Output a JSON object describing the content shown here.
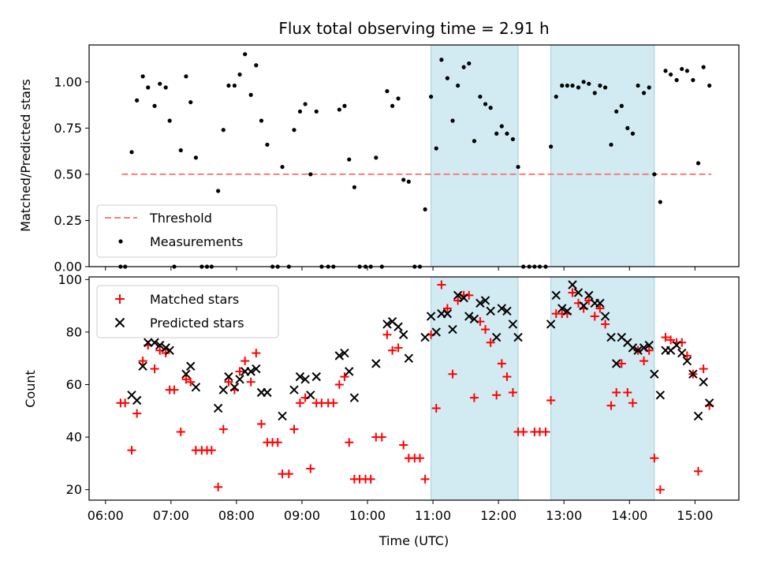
{
  "chart_data": {
    "type": "scatter",
    "title": "Flux total observing time = 2.91 h",
    "xlabel": "Time (UTC)",
    "x_ticks": [
      "06:00",
      "07:00",
      "08:00",
      "09:00",
      "10:00",
      "11:00",
      "12:00",
      "13:00",
      "14:00",
      "15:00"
    ],
    "xlim_hours": [
      5.75,
      15.67
    ],
    "shaded_intervals_hours": [
      [
        10.97,
        12.3
      ],
      [
        12.8,
        14.38
      ]
    ],
    "colors": {
      "threshold": "#f08080",
      "measurements": "#000000",
      "matched": "#ff0000",
      "predicted": "#000000",
      "shade": "#add8e6"
    },
    "top": {
      "ylabel": "Matched/Predicted stars",
      "ylim": [
        0,
        1.2
      ],
      "y_ticks": [
        "0.00",
        "0.25",
        "0.50",
        "0.75",
        "1.00"
      ],
      "threshold": {
        "name": "Threshold",
        "value": 0.5,
        "x_range": [
          6.25,
          15.25
        ]
      },
      "measurements_name": "Measurements",
      "measurements": [
        [
          6.23,
          0.0
        ],
        [
          6.3,
          0.0
        ],
        [
          6.4,
          0.62
        ],
        [
          6.48,
          0.9
        ],
        [
          6.57,
          1.03
        ],
        [
          6.65,
          0.97
        ],
        [
          6.75,
          0.87
        ],
        [
          6.83,
          0.99
        ],
        [
          6.92,
          0.97
        ],
        [
          6.98,
          0.79
        ],
        [
          7.05,
          0.0
        ],
        [
          7.15,
          0.63
        ],
        [
          7.23,
          1.03
        ],
        [
          7.3,
          0.89
        ],
        [
          7.38,
          0.59
        ],
        [
          7.47,
          0.0
        ],
        [
          7.55,
          0.0
        ],
        [
          7.62,
          0.0
        ],
        [
          7.72,
          0.41
        ],
        [
          7.8,
          0.74
        ],
        [
          7.88,
          0.98
        ],
        [
          7.97,
          0.98
        ],
        [
          8.05,
          1.04
        ],
        [
          8.13,
          1.15
        ],
        [
          8.22,
          0.93
        ],
        [
          8.3,
          1.09
        ],
        [
          8.38,
          0.79
        ],
        [
          8.47,
          0.66
        ],
        [
          8.55,
          0.0
        ],
        [
          8.63,
          0.0
        ],
        [
          8.7,
          0.54
        ],
        [
          8.8,
          0.0
        ],
        [
          8.88,
          0.74
        ],
        [
          8.97,
          0.84
        ],
        [
          9.05,
          0.88
        ],
        [
          9.13,
          0.5
        ],
        [
          9.22,
          0.84
        ],
        [
          9.3,
          0.0
        ],
        [
          9.4,
          0.0
        ],
        [
          9.48,
          0.0
        ],
        [
          9.57,
          0.85
        ],
        [
          9.65,
          0.87
        ],
        [
          9.72,
          0.58
        ],
        [
          9.8,
          0.43
        ],
        [
          9.88,
          0.0
        ],
        [
          9.97,
          0.0
        ],
        [
          10.05,
          0.0
        ],
        [
          10.13,
          0.59
        ],
        [
          10.22,
          0.0
        ],
        [
          10.3,
          0.95
        ],
        [
          10.38,
          0.87
        ],
        [
          10.47,
          0.91
        ],
        [
          10.55,
          0.47
        ],
        [
          10.63,
          0.46
        ],
        [
          10.72,
          0.0
        ],
        [
          10.8,
          0.0
        ],
        [
          10.88,
          0.31
        ],
        [
          10.97,
          0.92
        ],
        [
          11.05,
          0.64
        ],
        [
          11.13,
          1.12
        ],
        [
          11.22,
          1.02
        ],
        [
          11.3,
          0.79
        ],
        [
          11.38,
          0.98
        ],
        [
          11.47,
          1.08
        ],
        [
          11.55,
          1.1
        ],
        [
          11.63,
          0.68
        ],
        [
          11.72,
          0.92
        ],
        [
          11.8,
          0.88
        ],
        [
          11.88,
          0.86
        ],
        [
          11.97,
          0.72
        ],
        [
          12.05,
          0.76
        ],
        [
          12.13,
          0.72
        ],
        [
          12.22,
          0.69
        ],
        [
          12.3,
          0.54
        ],
        [
          12.38,
          0.0
        ],
        [
          12.47,
          0.0
        ],
        [
          12.55,
          0.0
        ],
        [
          12.63,
          0.0
        ],
        [
          12.72,
          0.0
        ],
        [
          12.8,
          0.65
        ],
        [
          12.88,
          0.92
        ],
        [
          12.97,
          0.98
        ],
        [
          13.05,
          0.98
        ],
        [
          13.13,
          0.98
        ],
        [
          13.22,
          0.97
        ],
        [
          13.3,
          1.0
        ],
        [
          13.38,
          0.99
        ],
        [
          13.47,
          0.94
        ],
        [
          13.55,
          0.98
        ],
        [
          13.63,
          0.97
        ],
        [
          13.72,
          0.66
        ],
        [
          13.8,
          0.84
        ],
        [
          13.88,
          0.87
        ],
        [
          13.97,
          0.75
        ],
        [
          14.05,
          0.72
        ],
        [
          14.13,
          0.98
        ],
        [
          14.22,
          0.94
        ],
        [
          14.3,
          0.97
        ],
        [
          14.38,
          0.5
        ],
        [
          14.47,
          0.35
        ],
        [
          14.55,
          1.06
        ],
        [
          14.63,
          1.04
        ],
        [
          14.72,
          1.01
        ],
        [
          14.8,
          1.07
        ],
        [
          14.88,
          1.06
        ],
        [
          14.97,
          1.01
        ],
        [
          15.05,
          0.56
        ],
        [
          15.13,
          1.08
        ],
        [
          15.22,
          0.98
        ]
      ]
    },
    "bottom": {
      "ylabel": "Count",
      "ylim": [
        16,
        101
      ],
      "y_ticks": [
        "20",
        "40",
        "60",
        "80",
        "100"
      ],
      "matched_name": "Matched stars",
      "predicted_name": "Predicted stars",
      "matched": [
        [
          6.23,
          53
        ],
        [
          6.3,
          53
        ],
        [
          6.4,
          35
        ],
        [
          6.48,
          49
        ],
        [
          6.57,
          69
        ],
        [
          6.65,
          75
        ],
        [
          6.75,
          66
        ],
        [
          6.83,
          73
        ],
        [
          6.92,
          72
        ],
        [
          6.98,
          58
        ],
        [
          7.05,
          58
        ],
        [
          7.15,
          42
        ],
        [
          7.23,
          62
        ],
        [
          7.3,
          61
        ],
        [
          7.38,
          35
        ],
        [
          7.47,
          35
        ],
        [
          7.55,
          35
        ],
        [
          7.62,
          35
        ],
        [
          7.72,
          21
        ],
        [
          7.8,
          43
        ],
        [
          7.88,
          61
        ],
        [
          7.97,
          58
        ],
        [
          8.05,
          65
        ],
        [
          8.13,
          69
        ],
        [
          8.22,
          61
        ],
        [
          8.3,
          72
        ],
        [
          8.38,
          45
        ],
        [
          8.47,
          38
        ],
        [
          8.55,
          38
        ],
        [
          8.63,
          38
        ],
        [
          8.7,
          26
        ],
        [
          8.8,
          26
        ],
        [
          8.88,
          43
        ],
        [
          8.97,
          53
        ],
        [
          9.05,
          55
        ],
        [
          9.13,
          28
        ],
        [
          9.22,
          53
        ],
        [
          9.3,
          53
        ],
        [
          9.4,
          53
        ],
        [
          9.48,
          53
        ],
        [
          9.57,
          60
        ],
        [
          9.65,
          63
        ],
        [
          9.72,
          38
        ],
        [
          9.8,
          24
        ],
        [
          9.88,
          24
        ],
        [
          9.97,
          24
        ],
        [
          10.05,
          24
        ],
        [
          10.13,
          40
        ],
        [
          10.22,
          40
        ],
        [
          10.3,
          79
        ],
        [
          10.38,
          73
        ],
        [
          10.47,
          74
        ],
        [
          10.55,
          37
        ],
        [
          10.63,
          32
        ],
        [
          10.72,
          32
        ],
        [
          10.8,
          32
        ],
        [
          10.88,
          24
        ],
        [
          10.97,
          79
        ],
        [
          11.05,
          51
        ],
        [
          11.13,
          98
        ],
        [
          11.22,
          89
        ],
        [
          11.3,
          64
        ],
        [
          11.38,
          92
        ],
        [
          11.47,
          94
        ],
        [
          11.55,
          94
        ],
        [
          11.63,
          55
        ],
        [
          11.72,
          84
        ],
        [
          11.8,
          81
        ],
        [
          11.88,
          76
        ],
        [
          11.97,
          56
        ],
        [
          12.05,
          68
        ],
        [
          12.13,
          63
        ],
        [
          12.22,
          57
        ],
        [
          12.3,
          42
        ],
        [
          12.38,
          42
        ],
        [
          12.55,
          42
        ],
        [
          12.63,
          42
        ],
        [
          12.72,
          42
        ],
        [
          12.8,
          54
        ],
        [
          12.88,
          87
        ],
        [
          12.97,
          87
        ],
        [
          13.05,
          87
        ],
        [
          13.13,
          95
        ],
        [
          13.22,
          91
        ],
        [
          13.3,
          89
        ],
        [
          13.38,
          92
        ],
        [
          13.47,
          86
        ],
        [
          13.55,
          89
        ],
        [
          13.63,
          83
        ],
        [
          13.72,
          52
        ],
        [
          13.8,
          57
        ],
        [
          13.88,
          68
        ],
        [
          13.97,
          57
        ],
        [
          14.05,
          53
        ],
        [
          14.13,
          73
        ],
        [
          14.22,
          69
        ],
        [
          14.3,
          73
        ],
        [
          14.38,
          32
        ],
        [
          14.47,
          20
        ],
        [
          14.55,
          78
        ],
        [
          14.63,
          77
        ],
        [
          14.72,
          76
        ],
        [
          14.8,
          76
        ],
        [
          14.88,
          71
        ],
        [
          14.97,
          64
        ],
        [
          15.05,
          27
        ],
        [
          15.13,
          66
        ],
        [
          15.22,
          52
        ]
      ],
      "predicted": [
        [
          6.4,
          56
        ],
        [
          6.48,
          54
        ],
        [
          6.57,
          67
        ],
        [
          6.65,
          76
        ],
        [
          6.75,
          76
        ],
        [
          6.83,
          75
        ],
        [
          6.92,
          74
        ],
        [
          6.98,
          73
        ],
        [
          7.23,
          64
        ],
        [
          7.3,
          67
        ],
        [
          7.38,
          59
        ],
        [
          7.72,
          51
        ],
        [
          7.8,
          58
        ],
        [
          7.88,
          63
        ],
        [
          7.97,
          59
        ],
        [
          8.05,
          62
        ],
        [
          8.13,
          65
        ],
        [
          8.22,
          65
        ],
        [
          8.3,
          66
        ],
        [
          8.38,
          57
        ],
        [
          8.47,
          57
        ],
        [
          8.7,
          48
        ],
        [
          8.88,
          58
        ],
        [
          8.97,
          63
        ],
        [
          9.05,
          62
        ],
        [
          9.13,
          56
        ],
        [
          9.22,
          63
        ],
        [
          9.57,
          71
        ],
        [
          9.65,
          72
        ],
        [
          9.72,
          65
        ],
        [
          9.8,
          55
        ],
        [
          10.13,
          68
        ],
        [
          10.3,
          83
        ],
        [
          10.38,
          84
        ],
        [
          10.47,
          82
        ],
        [
          10.55,
          79
        ],
        [
          10.63,
          70
        ],
        [
          10.88,
          78
        ],
        [
          10.97,
          86
        ],
        [
          11.05,
          80
        ],
        [
          11.13,
          87
        ],
        [
          11.22,
          87
        ],
        [
          11.3,
          81
        ],
        [
          11.38,
          94
        ],
        [
          11.47,
          93
        ],
        [
          11.55,
          86
        ],
        [
          11.63,
          85
        ],
        [
          11.72,
          91
        ],
        [
          11.8,
          92
        ],
        [
          11.88,
          88
        ],
        [
          11.97,
          78
        ],
        [
          12.05,
          89
        ],
        [
          12.13,
          88
        ],
        [
          12.22,
          83
        ],
        [
          12.3,
          78
        ],
        [
          12.8,
          83
        ],
        [
          12.88,
          94
        ],
        [
          12.97,
          89
        ],
        [
          13.05,
          88
        ],
        [
          13.13,
          98
        ],
        [
          13.22,
          95
        ],
        [
          13.3,
          90
        ],
        [
          13.38,
          94
        ],
        [
          13.47,
          91
        ],
        [
          13.55,
          91
        ],
        [
          13.63,
          86
        ],
        [
          13.72,
          78
        ],
        [
          13.8,
          68
        ],
        [
          13.88,
          78
        ],
        [
          13.97,
          76
        ],
        [
          14.05,
          74
        ],
        [
          14.13,
          73
        ],
        [
          14.22,
          74
        ],
        [
          14.3,
          75
        ],
        [
          14.38,
          64
        ],
        [
          14.47,
          56
        ],
        [
          14.55,
          73
        ],
        [
          14.63,
          73
        ],
        [
          14.72,
          75
        ],
        [
          14.8,
          72
        ],
        [
          14.88,
          69
        ],
        [
          14.97,
          64
        ],
        [
          15.05,
          48
        ],
        [
          15.13,
          61
        ],
        [
          15.22,
          53
        ]
      ]
    }
  }
}
